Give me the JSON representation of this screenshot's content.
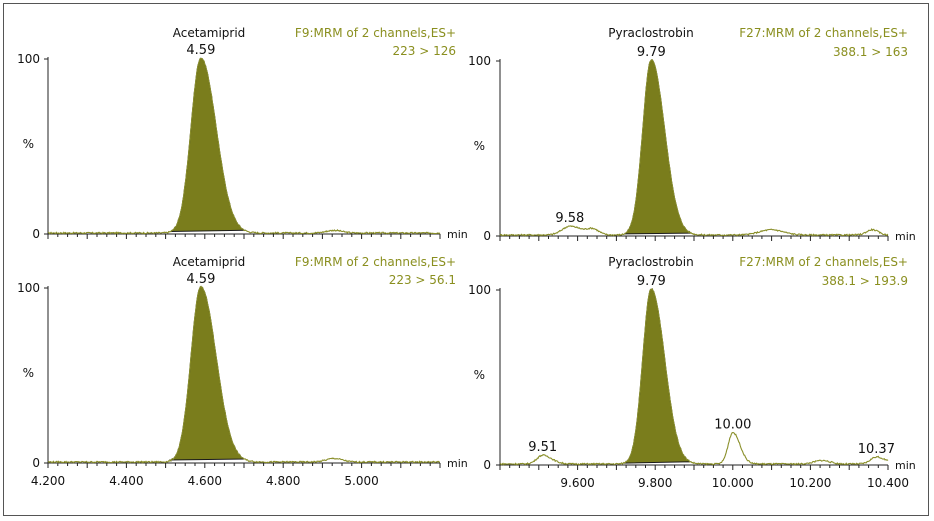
{
  "colors": {
    "trace": "#8a8f2a",
    "fill": "#7a7d1c",
    "info": "#8a8f1f",
    "axis": "#222222"
  },
  "chart_data": [
    {
      "type": "line",
      "title": "Acetamiprid",
      "info": [
        "F9:MRM of 2 channels,ES+",
        "223 > 126"
      ],
      "ylabel": "%",
      "xlabel": "min",
      "ylim": [
        0,
        100
      ],
      "xlim": [
        4.2,
        5.2
      ],
      "y_ticks": [
        "0",
        "100"
      ],
      "x_tick_labels": [],
      "peaks": [
        {
          "rt": 4.59,
          "label": "4.59",
          "height": 100,
          "width": 0.025,
          "filled": true
        }
      ],
      "noise": [
        {
          "rt": 4.93,
          "height": 1.5,
          "width": 0.02
        }
      ]
    },
    {
      "type": "line",
      "title": "Pyraclostrobin",
      "info": [
        "F27:MRM of 2 channels,ES+",
        "388.1 > 163"
      ],
      "ylabel": "%",
      "xlabel": "min",
      "ylim": [
        0,
        100
      ],
      "xlim": [
        9.4,
        10.4
      ],
      "y_ticks": [
        "0",
        "100"
      ],
      "x_tick_labels": [],
      "peaks": [
        {
          "rt": 9.79,
          "label": "9.79",
          "height": 100,
          "width": 0.022,
          "filled": true
        },
        {
          "rt": 9.58,
          "label": "9.58",
          "height": 5,
          "width": 0.02,
          "filled": false
        }
      ],
      "noise": [
        {
          "rt": 9.64,
          "height": 3,
          "width": 0.015
        },
        {
          "rt": 10.1,
          "height": 3,
          "width": 0.03
        },
        {
          "rt": 10.36,
          "height": 3,
          "width": 0.015
        }
      ]
    },
    {
      "type": "line",
      "title": "Acetamiprid",
      "info": [
        "F9:MRM of 2 channels,ES+",
        "223 > 56.1"
      ],
      "ylabel": "%",
      "xlabel": "min",
      "ylim": [
        0,
        100
      ],
      "xlim": [
        4.2,
        5.2
      ],
      "y_ticks": [
        "0",
        "100"
      ],
      "x_ticks": [
        4.2,
        4.4,
        4.6,
        4.8,
        5.0
      ],
      "x_tick_labels": [
        "4.200",
        "4.400",
        "4.600",
        "4.800",
        "5.000"
      ],
      "peaks": [
        {
          "rt": 4.59,
          "label": "4.59",
          "height": 100,
          "width": 0.025,
          "filled": true
        }
      ],
      "noise": [
        {
          "rt": 4.93,
          "height": 2,
          "width": 0.02
        }
      ]
    },
    {
      "type": "line",
      "title": "Pyraclostrobin",
      "info": [
        "F27:MRM of 2 channels,ES+",
        "388.1 > 193.9"
      ],
      "ylabel": "%",
      "xlabel": "min",
      "ylim": [
        0,
        100
      ],
      "xlim": [
        9.4,
        10.4
      ],
      "y_ticks": [
        "0",
        "100"
      ],
      "x_ticks": [
        9.6,
        9.8,
        10.0,
        10.2,
        10.4
      ],
      "x_tick_labels": [
        "9.600",
        "9.800",
        "10.000",
        "10.200",
        "10.400"
      ],
      "peaks": [
        {
          "rt": 9.79,
          "label": "9.79",
          "height": 100,
          "width": 0.022,
          "filled": true
        },
        {
          "rt": 10.0,
          "label": "10.00",
          "height": 18,
          "width": 0.012,
          "filled": false
        },
        {
          "rt": 9.51,
          "label": "9.51",
          "height": 5,
          "width": 0.015,
          "filled": false
        },
        {
          "rt": 10.37,
          "label": "10.37",
          "height": 4,
          "width": 0.015,
          "filled": false
        }
      ],
      "noise": [
        {
          "rt": 10.23,
          "height": 2,
          "width": 0.02
        }
      ]
    }
  ]
}
